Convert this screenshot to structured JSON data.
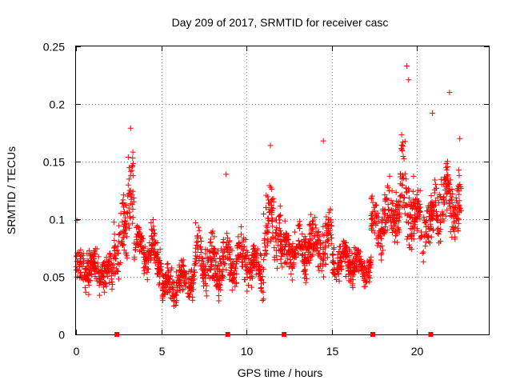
{
  "chart_data": {
    "type": "scatter",
    "title": "Day 209 of 2017, SRMTID for receiver casc",
    "xlabel": "GPS time / hours",
    "ylabel": "SRMTID / TECUs",
    "xlim": [
      0,
      24.2
    ],
    "ylim": [
      0,
      0.25
    ],
    "xticks": [
      0,
      5,
      10,
      15,
      20
    ],
    "yticks": [
      0,
      0.05,
      0.1,
      0.15,
      0.2,
      0.25
    ],
    "xtick_labels": [
      "0",
      "5",
      "10",
      "15",
      "20"
    ],
    "ytick_labels": [
      "0",
      "0.05",
      "0.1",
      "0.15",
      "0.2",
      "0.25"
    ],
    "grid": true,
    "marker": "+",
    "color": "#ff0000",
    "data_gap_markers_x": [
      2.4,
      8.9,
      12.2,
      17.4,
      20.8
    ],
    "series_profile": [
      {
        "t0": 0.0,
        "t1": 2.2,
        "mean": 0.055,
        "spread": 0.022
      },
      {
        "t0": 2.2,
        "t1": 3.0,
        "mean": 0.085,
        "spread": 0.04
      },
      {
        "t0": 3.0,
        "t1": 3.4,
        "mean": 0.13,
        "spread": 0.05
      },
      {
        "t0": 3.4,
        "t1": 5.0,
        "mean": 0.07,
        "spread": 0.025
      },
      {
        "t0": 5.0,
        "t1": 7.0,
        "mean": 0.045,
        "spread": 0.02
      },
      {
        "t0": 7.0,
        "t1": 9.0,
        "mean": 0.065,
        "spread": 0.028
      },
      {
        "t0": 9.0,
        "t1": 11.0,
        "mean": 0.06,
        "spread": 0.025
      },
      {
        "t0": 11.0,
        "t1": 12.0,
        "mean": 0.1,
        "spread": 0.04
      },
      {
        "t0": 12.0,
        "t1": 13.5,
        "mean": 0.07,
        "spread": 0.025
      },
      {
        "t0": 13.5,
        "t1": 15.0,
        "mean": 0.085,
        "spread": 0.03
      },
      {
        "t0": 15.0,
        "t1": 17.3,
        "mean": 0.06,
        "spread": 0.02
      },
      {
        "t0": 17.3,
        "t1": 19.0,
        "mean": 0.1,
        "spread": 0.03
      },
      {
        "t0": 19.0,
        "t1": 19.8,
        "mean": 0.12,
        "spread": 0.05
      },
      {
        "t0": 19.8,
        "t1": 21.0,
        "mean": 0.1,
        "spread": 0.03
      },
      {
        "t0": 21.0,
        "t1": 22.6,
        "mean": 0.11,
        "spread": 0.035
      }
    ],
    "peaks": [
      {
        "x": 3.2,
        "y": 0.179
      },
      {
        "x": 11.4,
        "y": 0.164
      },
      {
        "x": 14.5,
        "y": 0.168
      },
      {
        "x": 19.4,
        "y": 0.233
      },
      {
        "x": 19.5,
        "y": 0.221
      },
      {
        "x": 21.9,
        "y": 0.21
      },
      {
        "x": 22.5,
        "y": 0.17
      },
      {
        "x": 8.8,
        "y": 0.139
      },
      {
        "x": 20.9,
        "y": 0.192
      },
      {
        "x": 0.05,
        "y": 0.099
      }
    ]
  }
}
